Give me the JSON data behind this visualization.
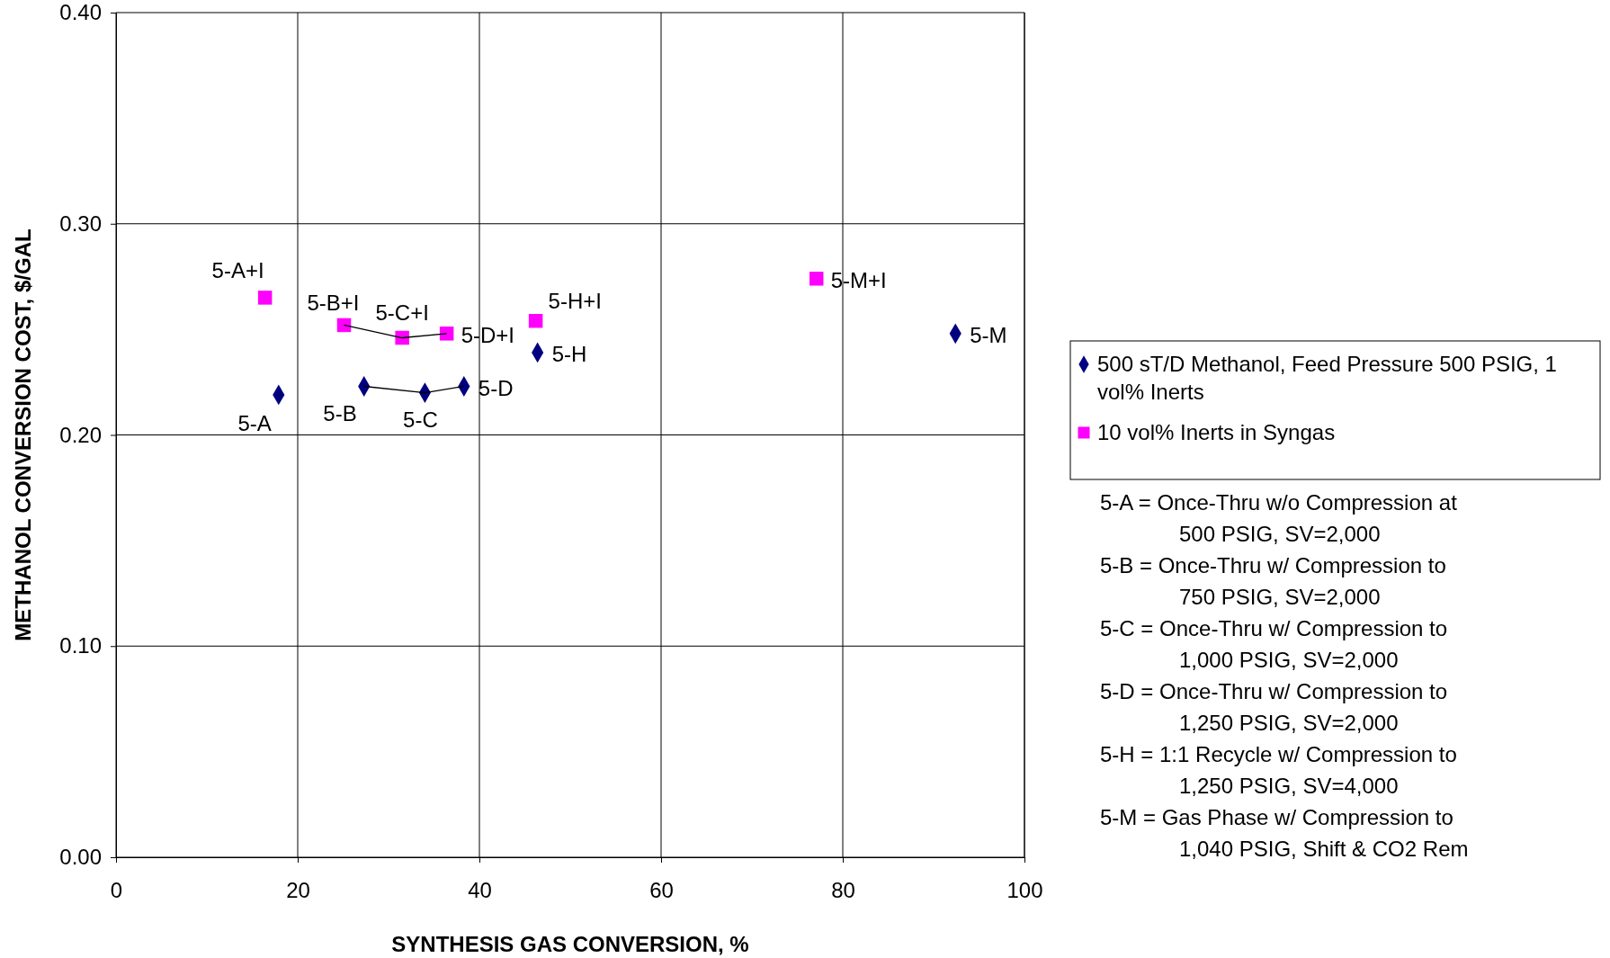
{
  "chart_data": {
    "type": "scatter",
    "xlabel": "SYNTHESIS GAS CONVERSION, %",
    "ylabel": "METHANOL CONVERSION COST, $/GAL",
    "xlim": [
      0,
      100
    ],
    "xticks": [
      0,
      20,
      40,
      60,
      80,
      100
    ],
    "ylim": [
      0,
      0.4
    ],
    "yticks": [
      {
        "value": 0,
        "label": "0.00"
      },
      {
        "value": 0.1,
        "label": "0.10"
      },
      {
        "value": 0.2,
        "label": "0.20"
      },
      {
        "value": 0.3,
        "label": "0.30"
      },
      {
        "value": 0.4,
        "label": "0.40"
      }
    ],
    "grid": true,
    "legend": "right",
    "series": [
      {
        "name": "500 sT/D Methanol, Feed Pressure 500 PSIG, 1 vol% Inerts",
        "color": "#000080",
        "marker": "diamond",
        "x": [
          17.9,
          27.3,
          34.0,
          38.3,
          46.4,
          92.4
        ],
        "values": [
          0.219,
          0.223,
          0.22,
          0.223,
          0.239,
          0.248
        ]
      },
      {
        "name": "10 vol% Inerts in Syngas",
        "color": "#ff00ff",
        "marker": "square",
        "x": [
          16.4,
          25.1,
          31.5,
          36.4,
          46.2,
          77.1
        ],
        "values": [
          0.265,
          0.252,
          0.246,
          0.248,
          0.254,
          0.274
        ]
      },
      {
        "type": "line",
        "color": "#000000",
        "marker": "none",
        "x": [
          27.3,
          34.0,
          38.3
        ],
        "values": [
          0.223,
          0.22,
          0.223
        ]
      },
      {
        "type": "line",
        "color": "#000000",
        "marker": "none",
        "x": [
          25.1,
          31.5,
          36.4
        ],
        "values": [
          0.252,
          0.246,
          0.248
        ]
      }
    ],
    "annotations": [
      {
        "text": "5-A",
        "x": 17.9,
        "y": 0.219
      },
      {
        "text": "5-B",
        "x": 27.3,
        "y": 0.223
      },
      {
        "text": "5-C",
        "x": 34.0,
        "y": 0.22
      },
      {
        "text": "5-D",
        "x": 38.3,
        "y": 0.223
      },
      {
        "text": "5-H",
        "x": 46.4,
        "y": 0.239
      },
      {
        "text": "5-M",
        "x": 92.4,
        "y": 0.248
      },
      {
        "text": "5-A+I",
        "x": 16.4,
        "y": 0.265
      },
      {
        "text": "5-B+I",
        "x": 25.1,
        "y": 0.252
      },
      {
        "text": "5-C+I",
        "x": 31.5,
        "y": 0.246
      },
      {
        "text": "5-D+I",
        "x": 36.4,
        "y": 0.248
      },
      {
        "text": "5-H+I",
        "x": 46.2,
        "y": 0.254
      },
      {
        "text": "5-M+I",
        "x": 77.1,
        "y": 0.274
      },
      "5-A = Once-Thru w/o Compression at",
      "500 PSIG, SV=2,000",
      "5-B = Once-Thru w/ Compression to",
      "750 PSIG, SV=2,000",
      "5-C = Once-Thru w/ Compression to",
      "1,000 PSIG, SV=2,000",
      "5-D = Once-Thru w/ Compression to",
      "1,250 PSIG, SV=2,000",
      "5-H = 1:1 Recycle w/ Compression to",
      "1,250 PSIG, SV=4,000",
      "5-M = Gas Phase w/ Compression to",
      "1,040 PSIG, Shift & CO2 Rem"
    ]
  }
}
